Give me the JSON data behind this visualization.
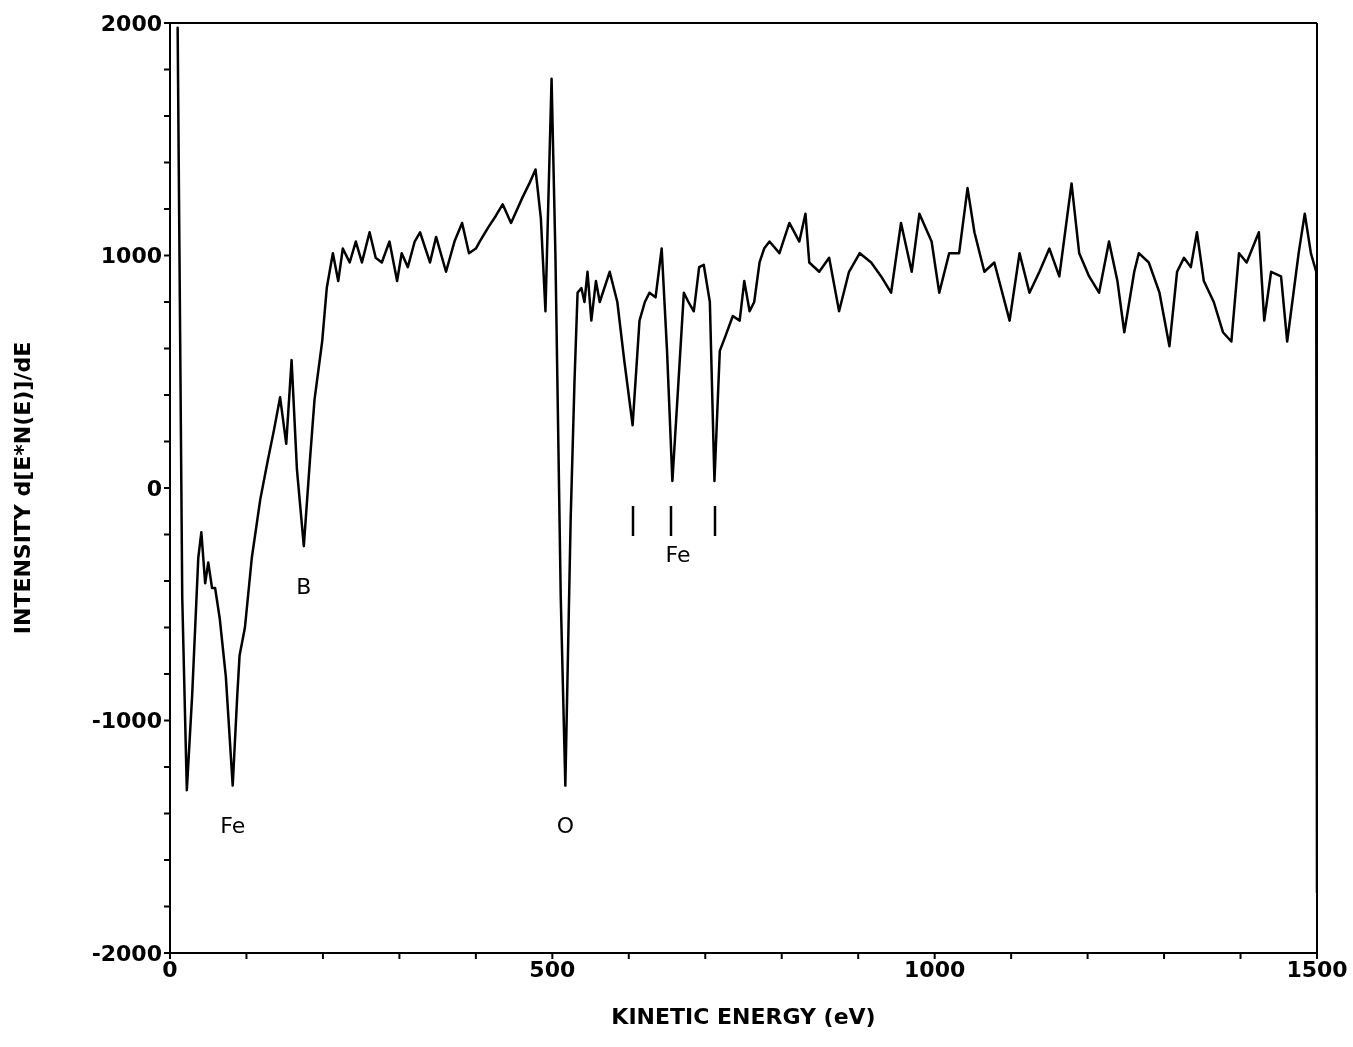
{
  "chart_data": {
    "type": "line",
    "xlabel": "KINETIC ENERGY (eV)",
    "ylabel": "INTENSITY d[E*N(E)]/dE",
    "xlim": [
      0,
      1500
    ],
    "ylim": [
      -2000,
      2000
    ],
    "xticks": [
      0,
      {
        "value": 100,
        "label": null
      },
      {
        "value": 200,
        "label": null
      },
      {
        "value": 300,
        "label": null
      },
      {
        "value": 400,
        "label": null
      },
      500,
      {
        "value": 600,
        "label": null
      },
      {
        "value": 700,
        "label": null
      },
      {
        "value": 800,
        "label": null
      },
      {
        "value": 900,
        "label": null
      },
      1000,
      {
        "value": 1100,
        "label": null
      },
      {
        "value": 1200,
        "label": null
      },
      {
        "value": 1300,
        "label": null
      },
      {
        "value": 1400,
        "label": null
      },
      1500
    ],
    "yticks": [
      -2000,
      {
        "value": -1800,
        "label": null
      },
      {
        "value": -1600,
        "label": null
      },
      {
        "value": -1400,
        "label": null
      },
      {
        "value": -1200,
        "label": null
      },
      -1000,
      {
        "value": -800,
        "label": null
      },
      {
        "value": -600,
        "label": null
      },
      {
        "value": -400,
        "label": null
      },
      {
        "value": -200,
        "label": null
      },
      0,
      {
        "value": 200,
        "label": null
      },
      {
        "value": 400,
        "label": null
      },
      {
        "value": 600,
        "label": null
      },
      {
        "value": 800,
        "label": null
      },
      1000,
      {
        "value": 1200,
        "label": null
      },
      {
        "value": 1400,
        "label": null
      },
      {
        "value": 1600,
        "label": null
      },
      {
        "value": 1800,
        "label": null
      },
      2000
    ],
    "grid": false,
    "legend": false,
    "marker": "none",
    "line_style": "solid",
    "annotations": [
      {
        "text": "Fe",
        "x": 82,
        "y": -1280
      },
      {
        "text": "B",
        "x": 175,
        "y": -250
      },
      {
        "text": "O",
        "x": 517,
        "y": -1280
      },
      "Fe"
    ],
    "series": [
      {
        "color": "#000000",
        "x": [
          10,
          16,
          22,
          29,
          37,
          41,
          46,
          50,
          55,
          59,
          65,
          73,
          82,
          88,
          91,
          98,
          107,
          118,
          128,
          136,
          144,
          152,
          159,
          166,
          175,
          183,
          189,
          199,
          205,
          213,
          220,
          226,
          235,
          243,
          251,
          261,
          269,
          277,
          287,
          297,
          303,
          311,
          320,
          327,
          340,
          348,
          361,
          372,
          382,
          391,
          400,
          405,
          416,
          426,
          435,
          446,
          461,
          470,
          478,
          485,
          491,
          499,
          504,
          511,
          517,
          524,
          529,
          533,
          538,
          542,
          546,
          551,
          557,
          562,
          575,
          585,
          594,
          605,
          614,
          621,
          627,
          635,
          643,
          650,
          657,
          665,
          672,
          678,
          685,
          692,
          698,
          706,
          712,
          719,
          726,
          736,
          745,
          751,
          758,
          764,
          771,
          777,
          784,
          797,
          810,
          823,
          831,
          836,
          849,
          862,
          875,
          888,
          902,
          917,
          930,
          943,
          956,
          970,
          980,
          996,
          1006,
          1019,
          1032,
          1043,
          1052,
          1065,
          1078,
          1098,
          1111,
          1124,
          1137,
          1150,
          1163,
          1179,
          1189,
          1202,
          1215,
          1228,
          1239,
          1248,
          1261,
          1267,
          1280,
          1294,
          1307,
          1317,
          1326,
          1335,
          1343,
          1352,
          1365,
          1377,
          1388,
          1398,
          1408,
          1424,
          1431,
          1440,
          1453,
          1461,
          1476,
          1484,
          1492,
          1499,
          1500
        ],
        "values": [
          1980,
          -470,
          -1300,
          -890,
          -300,
          -190,
          -410,
          -320,
          -430,
          -430,
          -560,
          -810,
          -1280,
          -890,
          -720,
          -600,
          -300,
          -50,
          120,
          250,
          390,
          190,
          550,
          80,
          -250,
          120,
          380,
          630,
          860,
          1010,
          890,
          1030,
          970,
          1060,
          970,
          1100,
          990,
          970,
          1060,
          890,
          1010,
          950,
          1060,
          1100,
          970,
          1080,
          930,
          1060,
          1140,
          1010,
          1030,
          1060,
          1120,
          1170,
          1220,
          1140,
          1250,
          1310,
          1370,
          1160,
          760,
          1760,
          1010,
          -470,
          -1280,
          -130,
          460,
          840,
          860,
          800,
          930,
          720,
          890,
          800,
          930,
          800,
          550,
          270,
          720,
          800,
          840,
          820,
          1030,
          590,
          30,
          460,
          840,
          800,
          760,
          950,
          960,
          800,
          30,
          590,
          650,
          740,
          720,
          890,
          760,
          800,
          970,
          1030,
          1060,
          1010,
          1140,
          1060,
          1180,
          970,
          930,
          990,
          760,
          930,
          1010,
          970,
          910,
          840,
          1140,
          930,
          1180,
          1060,
          840,
          1010,
          1010,
          1290,
          1100,
          930,
          970,
          720,
          1010,
          840,
          930,
          1030,
          910,
          1310,
          1010,
          910,
          840,
          1060,
          890,
          670,
          930,
          1010,
          970,
          840,
          610,
          930,
          990,
          950,
          1100,
          890,
          800,
          670,
          630,
          1010,
          970,
          1100,
          720,
          930,
          910,
          630,
          1010,
          1180,
          1010,
          930,
          -1740
        ]
      }
    ]
  }
}
